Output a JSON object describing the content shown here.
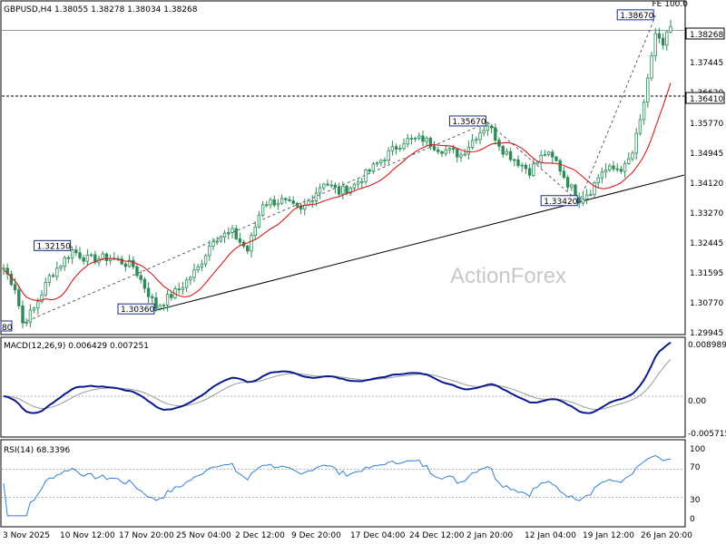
{
  "chart_data": [
    {
      "type": "candlestick",
      "title": "GBPUSD,H4  1.38055 1.38278 1.38034 1.38268",
      "last_price": "1.38268",
      "h_level": "1.36410",
      "watermark": "ActionForex",
      "ylim": [
        1.2975,
        1.3905
      ],
      "y_ticks": [
        "1.37445",
        "1.36620",
        "1.35770",
        "1.34945",
        "1.34120",
        "1.33270",
        "1.32445",
        "1.31595",
        "1.30770",
        "1.29945"
      ],
      "x_ticks": [
        "3 Nov 2025",
        "10 Nov 12:00",
        "17 Nov 20:00",
        "25 Nov 04:00",
        "2 Dec 12:00",
        "9 Dec 20:00",
        "17 Dec 04:00",
        "24 Dec 12:00",
        "2 Jan 20:00",
        "12 Jan 04:00",
        "19 Jan 12:00",
        "26 Jan 20:00"
      ],
      "cropped_labels": {
        "top_right": "FE 100.0",
        "left_low": "80"
      },
      "annotations": [
        {
          "label": "1.38670",
          "bar": 171,
          "price": 1.3867
        },
        {
          "label": "1.35670",
          "bar": 127,
          "price": 1.3567
        },
        {
          "label": "1.33420",
          "bar": 151,
          "price": 1.3342
        },
        {
          "label": "1.32150",
          "bar": 18,
          "price": 1.3215
        },
        {
          "label": "1.30360",
          "bar": 40,
          "price": 1.3036
        }
      ],
      "trendline": {
        "from": {
          "bar": 40,
          "price": 1.3036
        },
        "to": {
          "bar": 151,
          "price": 1.3342
        }
      },
      "dashed_projection": [
        {
          "bar": 5,
          "price": 1.3
        },
        {
          "bar": 127,
          "price": 1.3567
        },
        {
          "bar": 151,
          "price": 1.3342
        },
        {
          "bar": 171,
          "price": 1.3867
        }
      ],
      "anchors": [
        [
          0,
          1.3155
        ],
        [
          3,
          1.31
        ],
        [
          5,
          1.3
        ],
        [
          8,
          1.304
        ],
        [
          12,
          1.313
        ],
        [
          18,
          1.3205
        ],
        [
          22,
          1.318
        ],
        [
          28,
          1.3185
        ],
        [
          34,
          1.316
        ],
        [
          40,
          1.3045
        ],
        [
          46,
          1.3095
        ],
        [
          51,
          1.3155
        ],
        [
          55,
          1.324
        ],
        [
          60,
          1.3255
        ],
        [
          64,
          1.3205
        ],
        [
          68,
          1.334
        ],
        [
          73,
          1.3345
        ],
        [
          78,
          1.3315
        ],
        [
          84,
          1.34
        ],
        [
          88,
          1.337
        ],
        [
          92,
          1.339
        ],
        [
          96,
          1.343
        ],
        [
          100,
          1.347
        ],
        [
          105,
          1.3515
        ],
        [
          110,
          1.352
        ],
        [
          114,
          1.3495
        ],
        [
          120,
          1.3475
        ],
        [
          124,
          1.353
        ],
        [
          127,
          1.3562
        ],
        [
          131,
          1.349
        ],
        [
          135,
          1.3455
        ],
        [
          138,
          1.343
        ],
        [
          142,
          1.348
        ],
        [
          145,
          1.3455
        ],
        [
          148,
          1.3395
        ],
        [
          151,
          1.335
        ],
        [
          154,
          1.3375
        ],
        [
          157,
          1.343
        ],
        [
          160,
          1.3435
        ],
        [
          163,
          1.344
        ],
        [
          165,
          1.348
        ],
        [
          167,
          1.357
        ],
        [
          169,
          1.368
        ],
        [
          170,
          1.3745
        ],
        [
          171,
          1.382
        ],
        [
          172,
          1.3805
        ],
        [
          173,
          1.378
        ],
        [
          174,
          1.3815
        ],
        [
          175,
          1.3827
        ]
      ]
    },
    {
      "type": "line",
      "title": "MACD(12,26,9) 0.006429 0.007251",
      "ylim": [
        -0.0068,
        0.0098
      ],
      "y_ticks": [
        "0.008989",
        "0.00",
        "-0.005715"
      ]
    },
    {
      "type": "line",
      "title": "RSI(14) 68.3396",
      "ylim": [
        0,
        100
      ],
      "y_ticks": [
        "100",
        "70",
        "30",
        "0"
      ]
    }
  ],
  "colors": {
    "bull": "#2e8b57",
    "bear": "#2e8b57",
    "ma": "#d41c1c",
    "macd": "#0a1a8c",
    "signal": "#999999",
    "rsi": "#2f7fd6"
  }
}
